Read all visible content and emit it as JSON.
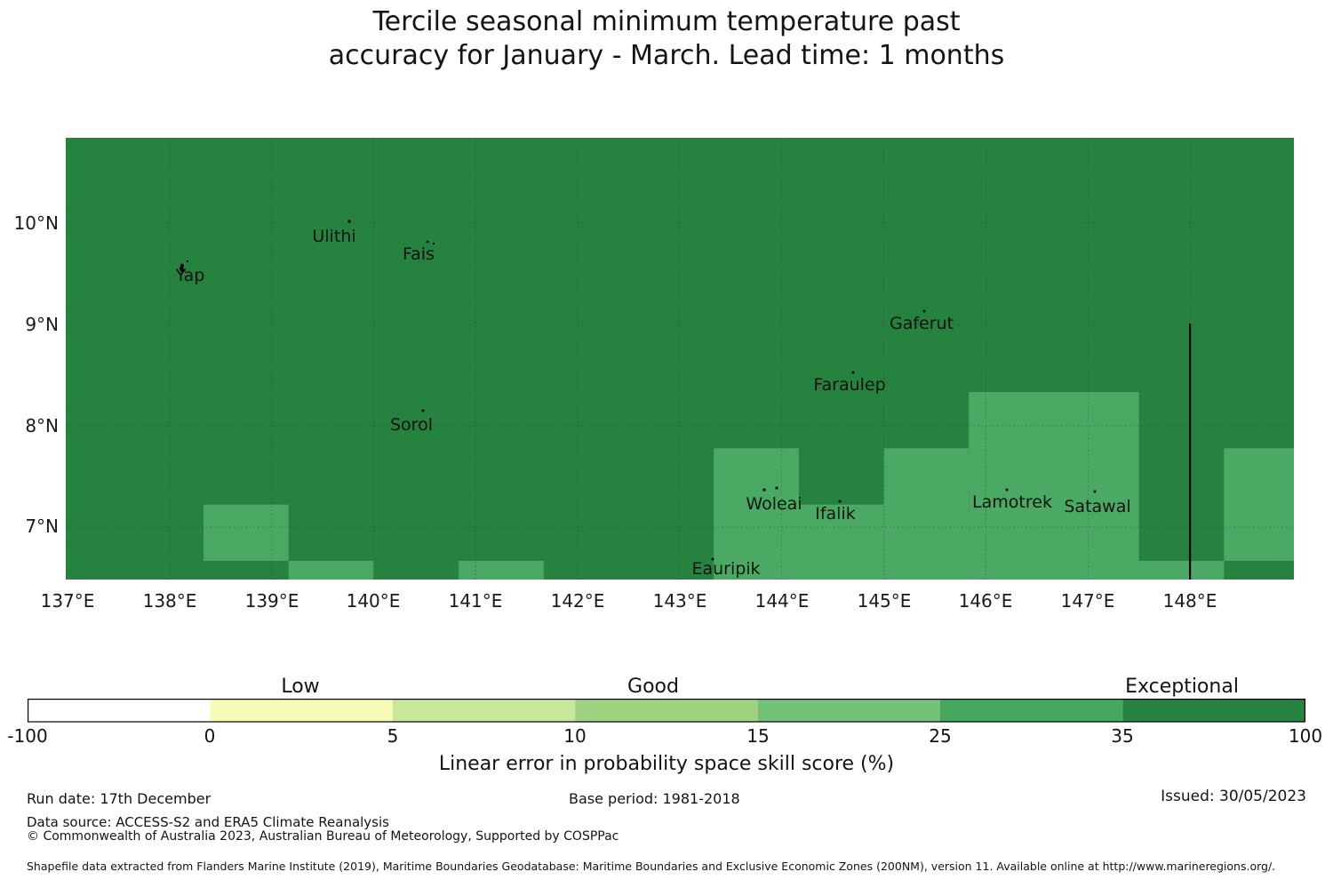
{
  "title": {
    "line1": "Tercile seasonal minimum temperature past",
    "line2": "accuracy for January - March. Lead time: 1 months"
  },
  "colors": {
    "skill_exceptional": "#26823f",
    "skill_good_high": "#4aa963",
    "grid_line": "#0c3a1d",
    "boundary_line": "#000000"
  },
  "map": {
    "islands": [
      {
        "name": "Yap"
      },
      {
        "name": "Ulithi"
      },
      {
        "name": "Fais"
      },
      {
        "name": "Sorol"
      },
      {
        "name": "Gaferut"
      },
      {
        "name": "Faraulep"
      },
      {
        "name": "Woleai"
      },
      {
        "name": "Ifalik"
      },
      {
        "name": "Eauripik"
      },
      {
        "name": "Lamotrek"
      },
      {
        "name": "Satawal"
      }
    ],
    "x_ticks": [
      "137°E",
      "138°E",
      "139°E",
      "140°E",
      "141°E",
      "142°E",
      "143°E",
      "144°E",
      "145°E",
      "146°E",
      "147°E",
      "148°E"
    ],
    "y_ticks": [
      "10°N",
      "9°N",
      "8°N",
      "7°N"
    ]
  },
  "colorbar": {
    "labels": [
      "Low",
      "Good",
      "Exceptional"
    ],
    "tick_labels": [
      "-100",
      "0",
      "5",
      "10",
      "15",
      "25",
      "35",
      "100"
    ],
    "segment_colors": [
      "#ffffff",
      "#f7fbb3",
      "#c9e79b",
      "#9ed383",
      "#73c377",
      "#45a85e",
      "#26823f"
    ],
    "axis_label": "Linear error in probability space skill score (%)"
  },
  "footer": {
    "run_date": "Run date: 17th December",
    "base_period": "Base period: 1981-2018",
    "issued": "Issued: 30/05/2023",
    "data_source": "Data source: ACCESS-S2 and ERA5 Climate Reanalysis",
    "copyright": "© Commonwealth of Australia 2023, Australian Bureau of Meteorology, Supported by COSPPac",
    "shapefile_note": "Shapefile data extracted from Flanders Marine Institute (2019), Maritime Boundaries Geodatabase: Maritime Boundaries and Exclusive Economic Zones (200NM), version 11. Available online at http://www.marineregions.org/."
  },
  "chart_data": {
    "type": "heatmap",
    "title": "Tercile seasonal minimum temperature past accuracy for January - March. Lead time: 1 months",
    "legend_label": "Linear error in probability space skill score (%)",
    "colorbar_boundaries": [
      -100,
      0,
      5,
      10,
      15,
      25,
      35,
      100
    ],
    "colorbar_categories": [
      "Low",
      "Good",
      "Exceptional"
    ],
    "extent": {
      "lon": [
        137.0,
        149.02
      ],
      "lat": [
        6.48,
        10.84
      ]
    },
    "grid_resolution_deg": {
      "lon": 0.8333,
      "lat": 0.5556
    },
    "background_skill_bin": "35-100",
    "overlay_skill_bin": "25-35",
    "skill_cells": [
      {
        "lon": [
          138.3333,
          139.1667
        ],
        "lat": [
          6.6667,
          7.2222
        ]
      },
      {
        "lon": [
          139.1667,
          140.0
        ],
        "lat": [
          6.1111,
          6.6667
        ]
      },
      {
        "lon": [
          140.8333,
          141.6667
        ],
        "lat": [
          6.1111,
          6.6667
        ]
      },
      {
        "lon": [
          143.3333,
          144.1667
        ],
        "lat": [
          6.1111,
          7.7778
        ]
      },
      {
        "lon": [
          144.1667,
          145.0
        ],
        "lat": [
          6.1111,
          7.2222
        ]
      },
      {
        "lon": [
          145.0,
          145.8333
        ],
        "lat": [
          6.1111,
          7.7778
        ]
      },
      {
        "lon": [
          145.8333,
          147.5
        ],
        "lat": [
          6.1111,
          8.3333
        ]
      },
      {
        "lon": [
          147.5,
          148.3333
        ],
        "lat": [
          6.1111,
          6.6667
        ]
      },
      {
        "lon": [
          148.3333,
          149.1667
        ],
        "lat": [
          6.6667,
          7.7778
        ]
      }
    ],
    "boundary_line_lon": 148,
    "islands": [
      {
        "name": "Yap",
        "lon": 138.2,
        "lat": 9.55
      },
      {
        "name": "Ulithi",
        "lon": 139.6,
        "lat": 9.95
      },
      {
        "name": "Fais",
        "lon": 140.5,
        "lat": 9.76
      },
      {
        "name": "Sorol",
        "lon": 140.4,
        "lat": 8.13
      },
      {
        "name": "Gaferut",
        "lon": 145.4,
        "lat": 9.14
      },
      {
        "name": "Faraulep",
        "lon": 144.7,
        "lat": 8.55
      },
      {
        "name": "Woleai",
        "lon": 143.9,
        "lat": 7.38
      },
      {
        "name": "Ifalik",
        "lon": 144.5,
        "lat": 7.25
      },
      {
        "name": "Eauripik",
        "lon": 143.4,
        "lat": 6.7
      },
      {
        "name": "Lamotrek",
        "lon": 146.3,
        "lat": 7.49
      },
      {
        "name": "Satawal",
        "lon": 147.1,
        "lat": 7.38
      }
    ]
  }
}
